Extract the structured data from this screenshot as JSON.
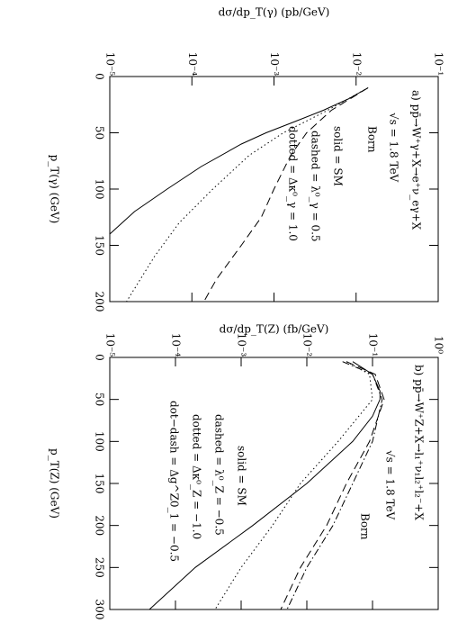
{
  "chart_data": [
    {
      "type": "line",
      "ylog": true,
      "ylabel": "dσ/dp_T(γ) (pb/GeV)",
      "xlabel": "p_T(γ) (GeV)",
      "annotations": [
        "a)  pp̄→W⁺γ+X→e⁺ν_eγ+X",
        "√s = 1.8 TeV",
        "Born",
        "solid   = SM",
        "dashed = λ⁰_γ = 0.5",
        "dotted = Δκ⁰_γ = 1.0"
      ],
      "xlim": [
        0,
        200
      ],
      "xticks": [
        0,
        50,
        100,
        150,
        200
      ],
      "ylim": [
        1e-05,
        0.1
      ],
      "yticks": [
        {
          "value": 1e-05,
          "label": "10⁻⁵"
        },
        {
          "value": 0.0001,
          "label": "10⁻⁴"
        },
        {
          "value": 0.001,
          "label": "10⁻³"
        },
        {
          "value": 0.01,
          "label": "10⁻²"
        },
        {
          "value": 0.1,
          "label": "10⁻¹"
        }
      ],
      "series": [
        {
          "color": "#000000",
          "dash": "solid",
          "x": [
            10,
            20,
            30,
            40,
            50,
            60,
            80,
            100,
            120,
            140
          ],
          "values": [
            0.014,
            0.008,
            0.004,
            0.0018,
            0.0008,
            0.0004,
            0.00013,
            5e-05,
            2e-05,
            1e-05
          ]
        },
        {
          "color": "#000000",
          "dash": "dashed",
          "x": [
            10,
            30,
            50,
            70,
            100,
            125,
            150,
            180,
            200
          ],
          "values": [
            0.014,
            0.005,
            0.0025,
            0.0016,
            0.001,
            0.0007,
            0.0004,
            0.0002,
            0.00014
          ]
        },
        {
          "color": "#000000",
          "dash": "dotted",
          "x": [
            10,
            30,
            50,
            70,
            100,
            130,
            160,
            200
          ],
          "values": [
            0.014,
            0.0045,
            0.0013,
            0.0005,
            0.00018,
            7e-05,
            3.5e-05,
            1.6e-05
          ]
        }
      ]
    },
    {
      "type": "line",
      "ylog": true,
      "ylabel": "dσ/dp_T(Z) (fb/GeV)",
      "xlabel": "p_T(Z) (GeV)",
      "annotations": [
        "b)  pp̄→W⁺Z+X→l₁⁺ν₁l₂⁺l₂⁻+X",
        "√s = 1.8 TeV",
        "Born",
        "solid   = SM",
        "dashed = λ⁰_Z = −0.5",
        "dotted = Δκ⁰_Z = −1.0",
        "dot−dash = Δg^Z0_1 = −0.5"
      ],
      "xlim": [
        0,
        300
      ],
      "xticks": [
        0,
        50,
        100,
        150,
        200,
        250,
        300
      ],
      "ylim": [
        1e-05,
        1
      ],
      "yticks": [
        {
          "value": 1e-05,
          "label": "10⁻⁵"
        },
        {
          "value": 0.0001,
          "label": "10⁻⁴"
        },
        {
          "value": 0.001,
          "label": "10⁻³"
        },
        {
          "value": 0.01,
          "label": "10⁻²"
        },
        {
          "value": 0.1,
          "label": "10⁻¹"
        },
        {
          "value": 1,
          "label": "10⁰"
        }
      ],
      "series": [
        {
          "color": "#000000",
          "dash": "solid",
          "x": [
            5,
            20,
            40,
            50,
            70,
            100,
            150,
            200,
            250,
            300
          ],
          "values": [
            0.05,
            0.1,
            0.13,
            0.13,
            0.1,
            0.05,
            0.01,
            0.0015,
            0.0002,
            4e-05
          ]
        },
        {
          "color": "#000000",
          "dash": "dashed",
          "x": [
            5,
            20,
            50,
            100,
            150,
            200,
            250,
            300
          ],
          "values": [
            0.04,
            0.11,
            0.15,
            0.09,
            0.04,
            0.02,
            0.008,
            0.004
          ]
        },
        {
          "color": "#000000",
          "dash": "dotted",
          "x": [
            5,
            20,
            50,
            100,
            150,
            200,
            250,
            300
          ],
          "values": [
            0.04,
            0.09,
            0.1,
            0.03,
            0.008,
            0.003,
            0.001,
            0.0004
          ]
        },
        {
          "color": "#000000",
          "dash": "dashdot",
          "x": [
            5,
            20,
            50,
            100,
            150,
            200,
            250,
            300
          ],
          "values": [
            0.035,
            0.1,
            0.14,
            0.1,
            0.05,
            0.025,
            0.01,
            0.005
          ]
        }
      ]
    }
  ]
}
